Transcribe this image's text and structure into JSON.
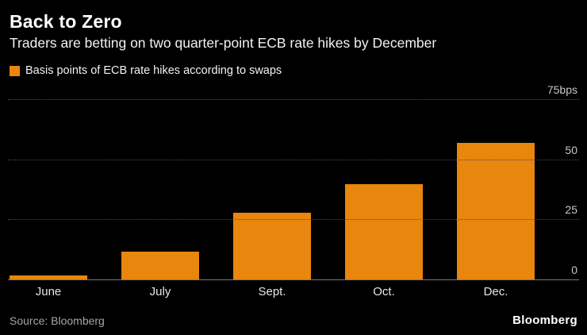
{
  "header": {
    "title": "Back to Zero",
    "subtitle": "Traders are betting on two quarter-point ECB rate hikes by December"
  },
  "legend": {
    "swatch_color": "#E8860D",
    "label": "Basis points of ECB rate hikes according to swaps"
  },
  "chart_data": {
    "type": "bar",
    "title": "Back to Zero",
    "subtitle": "Traders are betting on two quarter-point ECB rate hikes by December",
    "categories": [
      "June",
      "July",
      "Sept.",
      "Oct.",
      "Dec."
    ],
    "values": [
      2,
      12,
      28,
      40,
      57
    ],
    "series_label": "Basis points of ECB rate hikes according to swaps",
    "xlabel": "",
    "ylabel": "bps",
    "ylim": [
      0,
      75
    ],
    "yticks": [
      {
        "value": 0,
        "label": "0"
      },
      {
        "value": 25,
        "label": "25"
      },
      {
        "value": 50,
        "label": "50"
      },
      {
        "value": 75,
        "label": "75bps"
      }
    ],
    "bar_color": "#E8860D",
    "background_color": "#000000",
    "grid": "horizontal-dotted",
    "legend_position": "top-left",
    "y_axis_side": "right"
  },
  "footer": {
    "source": "Source: Bloomberg",
    "brand": "Bloomberg"
  }
}
